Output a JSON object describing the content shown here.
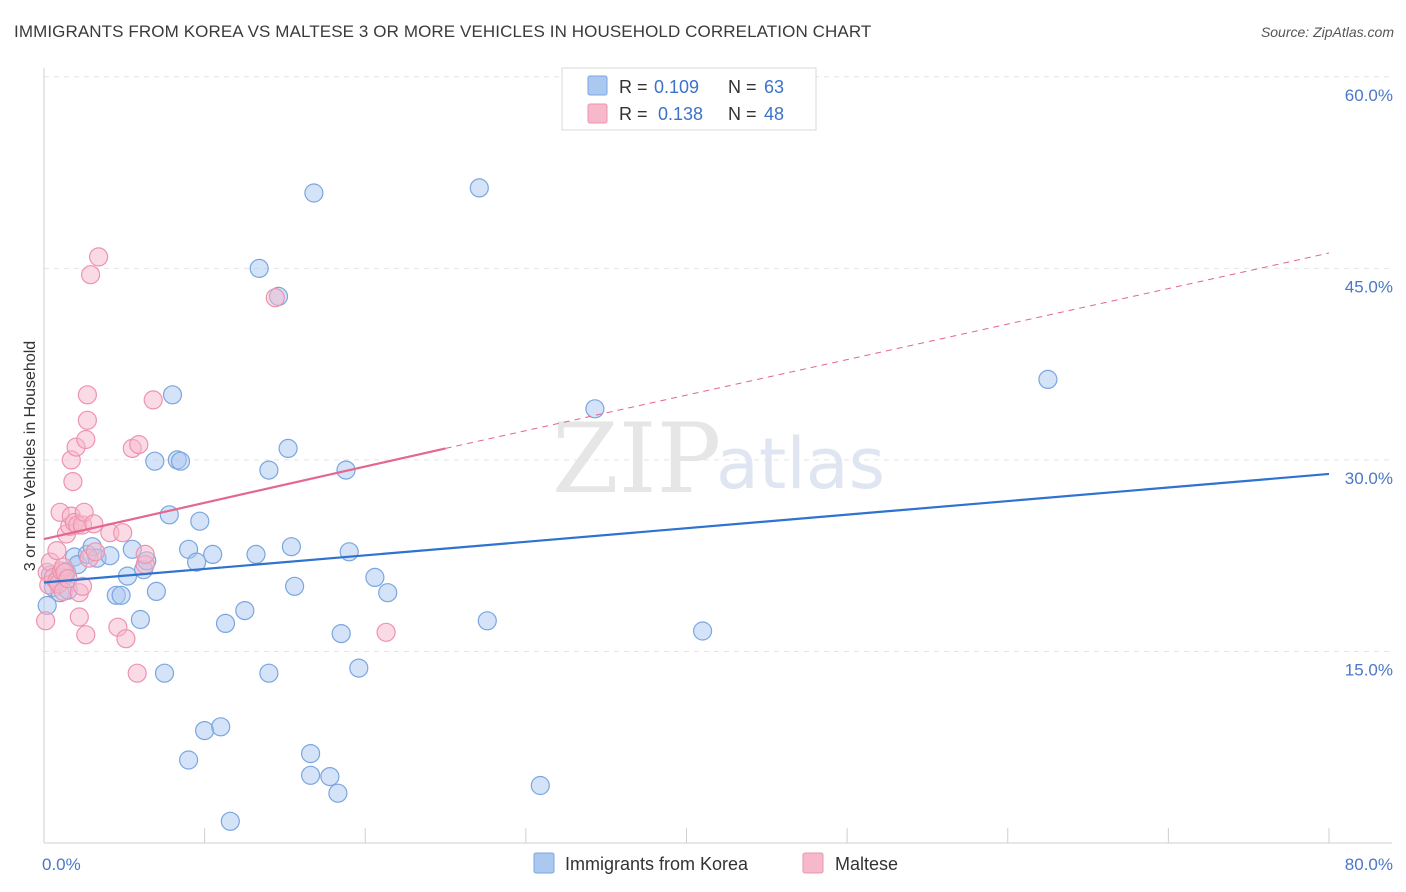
{
  "title": "IMMIGRANTS FROM KOREA VS MALTESE 3 OR MORE VEHICLES IN HOUSEHOLD CORRELATION CHART",
  "source": "Source: ZipAtlas.com",
  "watermark": {
    "zip": "ZIP",
    "atlas": "atlas"
  },
  "legend": {
    "rows": [
      {
        "r_label": "R =",
        "r_value": "0.109",
        "n_label": "N =",
        "n_value": "63"
      },
      {
        "r_label": "R =",
        "r_value": "0.138",
        "n_label": "N =",
        "n_value": "48"
      }
    ]
  },
  "colors": {
    "korea_fill": "#aac8f0",
    "korea_stroke": "#7aa6e0",
    "korea_line": "#2f72d0",
    "maltese_fill": "#f6b8cb",
    "maltese_stroke": "#ee93ae",
    "maltese_line": "#e4678f"
  },
  "chart_data": {
    "type": "scatter",
    "title": "IMMIGRANTS FROM KOREA VS MALTESE 3 OR MORE VEHICLES IN HOUSEHOLD CORRELATION CHART",
    "xlabel": "",
    "ylabel": "3 or more Vehicles in Household",
    "xlim": [
      0,
      80
    ],
    "ylim": [
      0,
      62
    ],
    "x_tick_labels": [
      "0.0%",
      "80.0%"
    ],
    "y_ticks": [
      15,
      30,
      45,
      60
    ],
    "y_tick_labels": [
      "15.0%",
      "30.0%",
      "45.0%",
      "60.0%"
    ],
    "legend_position": "bottom-center",
    "series": [
      {
        "name": "Immigrants from Korea",
        "r": 0.109,
        "n": 63,
        "trend": {
          "x": [
            0,
            80
          ],
          "y": [
            20.4,
            28.9
          ],
          "dashed_extension": false
        },
        "points": [
          [
            0.2,
            18.6
          ],
          [
            0.4,
            21.0
          ],
          [
            0.6,
            20.0
          ],
          [
            0.8,
            20.6
          ],
          [
            1.0,
            19.6
          ],
          [
            1.2,
            20.8
          ],
          [
            1.4,
            21.2
          ],
          [
            1.5,
            19.8
          ],
          [
            1.9,
            22.4
          ],
          [
            2.1,
            21.8
          ],
          [
            2.7,
            22.6
          ],
          [
            3.0,
            23.2
          ],
          [
            3.3,
            22.3
          ],
          [
            4.1,
            22.5
          ],
          [
            4.5,
            19.4
          ],
          [
            4.8,
            19.4
          ],
          [
            5.2,
            20.9
          ],
          [
            5.5,
            23.0
          ],
          [
            6.0,
            17.5
          ],
          [
            6.2,
            21.4
          ],
          [
            6.4,
            22.1
          ],
          [
            6.9,
            29.9
          ],
          [
            7.0,
            19.7
          ],
          [
            7.5,
            13.3
          ],
          [
            7.8,
            25.7
          ],
          [
            8.0,
            35.1
          ],
          [
            8.3,
            30.0
          ],
          [
            8.5,
            29.9
          ],
          [
            9.0,
            23.0
          ],
          [
            9.0,
            6.5
          ],
          [
            9.5,
            22.0
          ],
          [
            9.7,
            25.2
          ],
          [
            10.0,
            8.8
          ],
          [
            10.5,
            22.6
          ],
          [
            11.0,
            9.1
          ],
          [
            11.3,
            17.2
          ],
          [
            11.6,
            1.7
          ],
          [
            12.5,
            18.2
          ],
          [
            13.2,
            22.6
          ],
          [
            13.4,
            45.0
          ],
          [
            14.0,
            29.2
          ],
          [
            14.0,
            13.3
          ],
          [
            14.6,
            42.8
          ],
          [
            15.2,
            30.9
          ],
          [
            15.4,
            23.2
          ],
          [
            15.6,
            20.1
          ],
          [
            16.6,
            7.0
          ],
          [
            16.6,
            5.3
          ],
          [
            16.8,
            50.9
          ],
          [
            17.8,
            5.2
          ],
          [
            18.3,
            3.9
          ],
          [
            18.5,
            16.4
          ],
          [
            18.8,
            29.2
          ],
          [
            19.0,
            22.8
          ],
          [
            19.6,
            13.7
          ],
          [
            20.6,
            20.8
          ],
          [
            21.4,
            19.6
          ],
          [
            27.1,
            51.3
          ],
          [
            27.6,
            17.4
          ],
          [
            30.9,
            4.5
          ],
          [
            34.3,
            34.0
          ],
          [
            41.0,
            16.6
          ],
          [
            62.5,
            36.3
          ]
        ]
      },
      {
        "name": "Maltese",
        "r": 0.138,
        "n": 48,
        "trend": {
          "x": [
            0,
            25
          ],
          "y": [
            23.8,
            30.9
          ],
          "dashed_extension": {
            "x": [
              25,
              80
            ],
            "y": [
              30.9,
              46.2
            ]
          }
        },
        "points": [
          [
            0.1,
            17.4
          ],
          [
            0.2,
            21.2
          ],
          [
            0.3,
            20.2
          ],
          [
            0.4,
            22.0
          ],
          [
            0.6,
            20.8
          ],
          [
            0.8,
            20.5
          ],
          [
            0.8,
            22.9
          ],
          [
            0.9,
            20.3
          ],
          [
            1.0,
            25.9
          ],
          [
            1.1,
            21.3
          ],
          [
            1.2,
            19.7
          ],
          [
            1.2,
            21.6
          ],
          [
            1.3,
            21.2
          ],
          [
            1.4,
            24.2
          ],
          [
            1.5,
            20.7
          ],
          [
            1.6,
            24.8
          ],
          [
            1.7,
            25.6
          ],
          [
            1.7,
            30.0
          ],
          [
            1.8,
            28.3
          ],
          [
            1.9,
            25.1
          ],
          [
            2.0,
            31.0
          ],
          [
            2.1,
            24.9
          ],
          [
            2.2,
            19.6
          ],
          [
            2.2,
            17.7
          ],
          [
            2.4,
            24.9
          ],
          [
            2.4,
            20.1
          ],
          [
            2.5,
            25.9
          ],
          [
            2.6,
            31.6
          ],
          [
            2.6,
            16.3
          ],
          [
            2.7,
            33.1
          ],
          [
            2.7,
            35.1
          ],
          [
            2.8,
            22.3
          ],
          [
            2.9,
            44.5
          ],
          [
            3.1,
            25.0
          ],
          [
            3.2,
            22.8
          ],
          [
            3.4,
            45.9
          ],
          [
            4.1,
            24.3
          ],
          [
            4.6,
            16.9
          ],
          [
            4.9,
            24.3
          ],
          [
            5.1,
            16.0
          ],
          [
            5.5,
            30.9
          ],
          [
            5.8,
            13.3
          ],
          [
            5.9,
            31.2
          ],
          [
            6.3,
            21.8
          ],
          [
            6.3,
            22.6
          ],
          [
            6.8,
            34.7
          ],
          [
            14.4,
            42.7
          ],
          [
            21.3,
            16.5
          ]
        ]
      }
    ]
  }
}
